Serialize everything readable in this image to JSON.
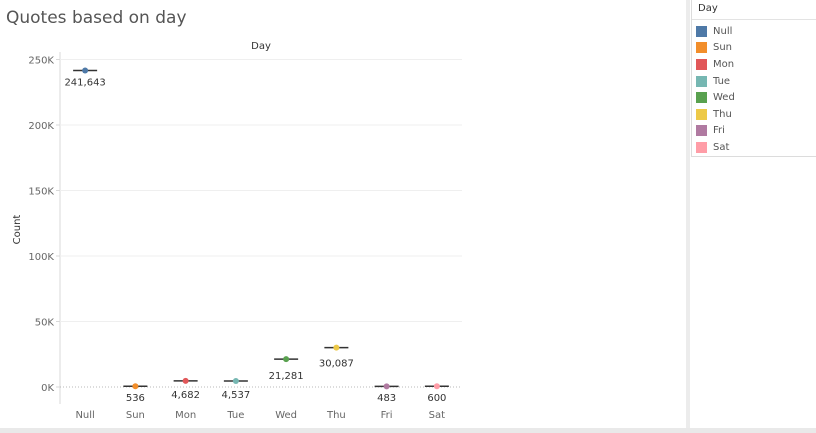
{
  "title": "Quotes based on day",
  "legend": {
    "title": "Day",
    "items": [
      {
        "label": "Null",
        "color": "#4e79a7"
      },
      {
        "label": "Sun",
        "color": "#f28e2b"
      },
      {
        "label": "Mon",
        "color": "#e15759"
      },
      {
        "label": "Tue",
        "color": "#76b7b2"
      },
      {
        "label": "Wed",
        "color": "#59a14f"
      },
      {
        "label": "Thu",
        "color": "#edc948"
      },
      {
        "label": "Fri",
        "color": "#b07aa1"
      },
      {
        "label": "Sat",
        "color": "#ff9da7"
      }
    ]
  },
  "chart_data": {
    "type": "scatter",
    "title": "Quotes based on day",
    "column_header": "Day",
    "ylabel": "Count",
    "categories": [
      "Null",
      "Sun",
      "Mon",
      "Tue",
      "Wed",
      "Thu",
      "Fri",
      "Sat"
    ],
    "values": [
      241643,
      536,
      4682,
      4537,
      21281,
      30087,
      483,
      600
    ],
    "data_labels": [
      "241,643",
      "536",
      "4,682",
      "4,537",
      "21,281",
      "30,087",
      "483",
      "600"
    ],
    "colors": [
      "#4e79a7",
      "#f28e2b",
      "#e15759",
      "#76b7b2",
      "#59a14f",
      "#edc948",
      "#b07aa1",
      "#ff9da7"
    ],
    "yticks": [
      0,
      50000,
      100000,
      150000,
      200000,
      250000
    ],
    "ytick_labels": [
      "0K",
      "50K",
      "100K",
      "150K",
      "200K",
      "250K"
    ],
    "ylim": [
      -5000,
      255000
    ],
    "grid": true,
    "legend_position": "right"
  }
}
